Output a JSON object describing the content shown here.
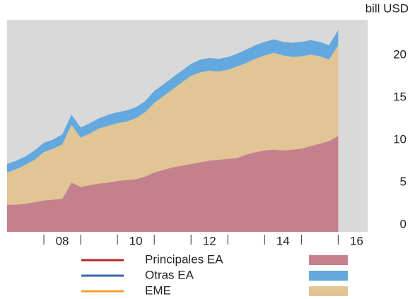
{
  "chart_data": {
    "type": "stacked-area",
    "unit_label": "bill USD",
    "x": [
      2007,
      2007.25,
      2007.5,
      2007.75,
      2008,
      2008.25,
      2008.5,
      2008.75,
      2009,
      2009.25,
      2009.5,
      2009.75,
      2010,
      2010.25,
      2010.5,
      2010.75,
      2011,
      2011.25,
      2011.5,
      2011.75,
      2012,
      2012.25,
      2012.5,
      2012.75,
      2013,
      2013.25,
      2013.5,
      2013.75,
      2014,
      2014.25,
      2014.5,
      2014.75,
      2015,
      2015.25,
      2015.5,
      2015.75,
      2016
    ],
    "series": [
      {
        "name": "Principales EA",
        "color": "#c4808c",
        "line_color": "#b22b2b",
        "values": [
          3.2,
          3.2,
          3.3,
          3.5,
          3.7,
          3.8,
          3.9,
          5.8,
          5.3,
          5.5,
          5.7,
          5.8,
          6.0,
          6.1,
          6.2,
          6.5,
          7.0,
          7.3,
          7.6,
          7.8,
          8.0,
          8.2,
          8.4,
          8.5,
          8.6,
          8.7,
          9.1,
          9.4,
          9.6,
          9.7,
          9.6,
          9.7,
          9.8,
          10.1,
          10.4,
          10.7,
          11.3
        ]
      },
      {
        "name": "Otras EA",
        "color": "#63a9e0",
        "line_color": "#3a64a8",
        "values": [
          1.0,
          1.0,
          1.0,
          1.1,
          1.1,
          1.1,
          1.2,
          1.2,
          1.2,
          1.2,
          1.2,
          1.3,
          1.3,
          1.3,
          1.3,
          1.3,
          1.4,
          1.4,
          1.4,
          1.4,
          1.4,
          1.5,
          1.5,
          1.5,
          1.5,
          1.5,
          1.6,
          1.6,
          1.6,
          1.6,
          1.6,
          1.7,
          1.7,
          1.7,
          1.7,
          1.7,
          1.8
        ]
      },
      {
        "name": "EME",
        "color": "#e2c595",
        "line_color": "#f0a030",
        "values": [
          3.8,
          4.2,
          4.6,
          5.0,
          5.7,
          6.0,
          6.4,
          6.8,
          5.8,
          6.1,
          6.5,
          6.7,
          6.8,
          6.9,
          7.2,
          7.6,
          8.2,
          8.7,
          9.2,
          9.8,
          10.4,
          10.6,
          10.6,
          10.4,
          10.5,
          10.8,
          10.8,
          11.0,
          11.2,
          11.4,
          11.2,
          10.9,
          10.9,
          10.8,
          10.3,
          9.6,
          10.7
        ]
      }
    ],
    "xlim": [
      2007,
      2016.8
    ],
    "xticks": [
      {
        "value": 2008.5,
        "label": "08"
      },
      {
        "value": 2010.5,
        "label": "10"
      },
      {
        "value": 2012.5,
        "label": "12"
      },
      {
        "value": 2014.5,
        "label": "14"
      },
      {
        "value": 2016.5,
        "label": "16"
      }
    ],
    "ylim": [
      0,
      25
    ],
    "yticks": [
      0,
      5,
      10,
      15,
      20
    ]
  }
}
